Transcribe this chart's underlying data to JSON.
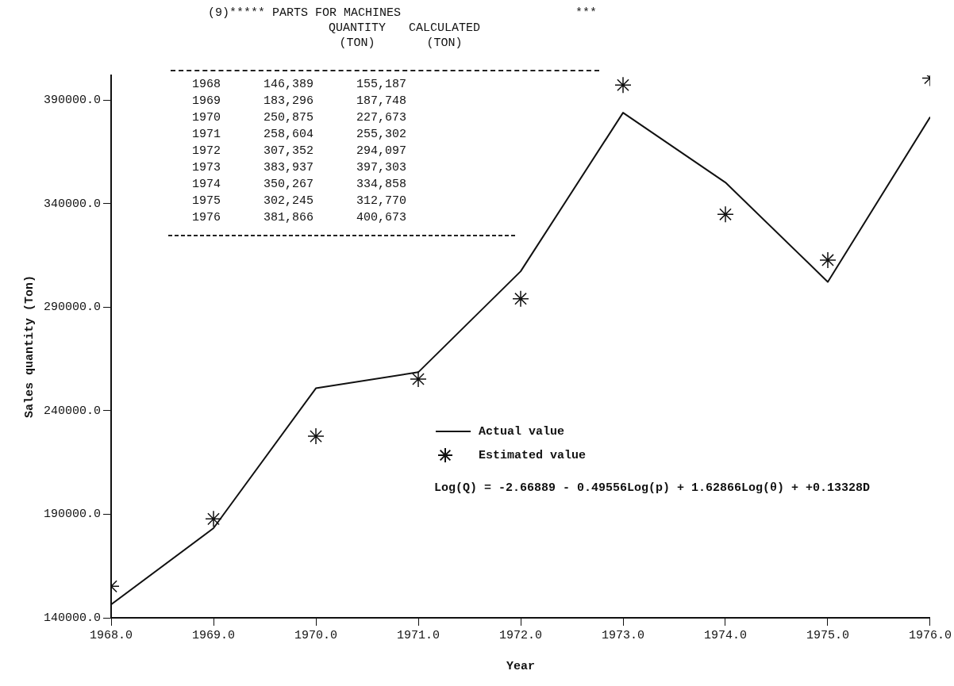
{
  "chart_data": {
    "type": "line",
    "title": "(9)***** PARTS FOR MACHINES",
    "xlabel": "Year",
    "ylabel": "Sales quantity (Ton)",
    "x": [
      1968,
      1969,
      1970,
      1971,
      1972,
      1973,
      1974,
      1975,
      1976
    ],
    "series": [
      {
        "name": "Actual value",
        "color": "#111111",
        "marker": "none",
        "values": [
          146389,
          183296,
          250875,
          258604,
          307352,
          383937,
          350267,
          302245,
          381866
        ]
      },
      {
        "name": "Estimated value",
        "type": "scatter",
        "color": "#111111",
        "marker": "cross",
        "values": [
          155187,
          187748,
          227673,
          255302,
          294097,
          397303,
          334858,
          312770,
          400673
        ]
      }
    ],
    "xlim": [
      1968,
      1976
    ],
    "xticks": [
      {
        "value": 1968,
        "label": "1968.0"
      },
      {
        "value": 1969,
        "label": "1969.0"
      },
      {
        "value": 1970,
        "label": "1970.0"
      },
      {
        "value": 1971,
        "label": "1971.0"
      },
      {
        "value": 1972,
        "label": "1972.0"
      },
      {
        "value": 1973,
        "label": "1973.0"
      },
      {
        "value": 1974,
        "label": "1974.0"
      },
      {
        "value": 1975,
        "label": "1975.0"
      },
      {
        "value": 1976,
        "label": "1976.0"
      }
    ],
    "ylim": [
      140000,
      402000
    ],
    "yticks": [
      {
        "value": 140000,
        "label": "140000.0"
      },
      {
        "value": 190000,
        "label": "190000.0"
      },
      {
        "value": 240000,
        "label": "240000.0"
      },
      {
        "value": 290000,
        "label": "290000.0"
      },
      {
        "value": 340000,
        "label": "340000.0"
      },
      {
        "value": 390000,
        "label": "390000.0"
      }
    ],
    "grid": false,
    "legend": "bottom right",
    "annotations": [
      "***",
      "QUANTITY (TON)",
      "CALCULATED (TON)",
      "Log(Q) = -2.66889 - 0.49556Log(p) + 1.62866Log(θ) + +0.13328D",
      "1968      146,389      155,187",
      "1969      183,296      187,748",
      "1970      250,875      227,673",
      "1971      258,604      255,302",
      "1972      307,352      294,097",
      "1973      383,937      397,303",
      "1974      350,267      334,858",
      "1975      302,245      312,770",
      "1976      381,866      400,673"
    ]
  }
}
